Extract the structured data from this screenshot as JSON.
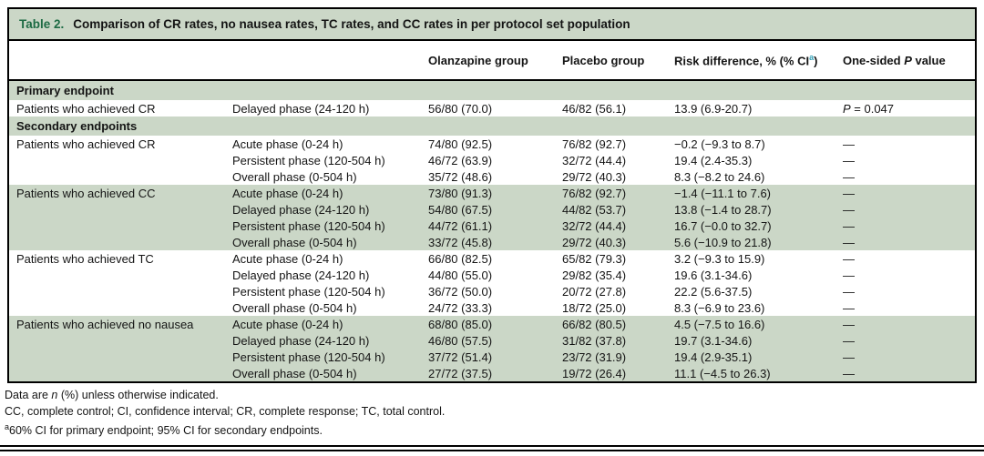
{
  "colors": {
    "band_green": "#cbd7c7",
    "title_green": "#1d6b44",
    "superscript_teal": "#2f9eb5"
  },
  "title": {
    "label": "Table 2.",
    "text": "Comparison of CR rates, no nausea rates, TC rates, and CC rates in per protocol set population"
  },
  "table": {
    "headers": {
      "endpoint": "",
      "phase": "",
      "olanzapine": "Olanzapine group",
      "placebo": "Placebo group",
      "risk_pre": "Risk difference, % (% CI",
      "risk_sup": "a",
      "risk_post": ")",
      "p_pre": "One-sided ",
      "p_italic": "P",
      "p_post": " value"
    },
    "rows": [
      {
        "type": "section",
        "label": "Primary endpoint"
      },
      {
        "type": "data",
        "shade": false,
        "endpoint": "Patients who achieved CR",
        "phase": "Delayed phase (24-120 h)",
        "olanzapine": "56/80 (70.0)",
        "placebo": "46/82 (56.1)",
        "risk": "13.9 (6.9-20.7)",
        "p": "P = 0.047"
      },
      {
        "type": "section",
        "label": "Secondary endpoints"
      },
      {
        "type": "data",
        "shade": false,
        "endpoint": "Patients who achieved CR",
        "phase": "Acute phase (0-24 h)",
        "olanzapine": "74/80 (92.5)",
        "placebo": "76/82 (92.7)",
        "risk": "−0.2 (−9.3 to 8.7)",
        "p": "—"
      },
      {
        "type": "data",
        "shade": false,
        "endpoint": "",
        "phase": "Persistent phase (120-504 h)",
        "olanzapine": "46/72 (63.9)",
        "placebo": "32/72 (44.4)",
        "risk": "19.4 (2.4-35.3)",
        "p": "—"
      },
      {
        "type": "data",
        "shade": false,
        "endpoint": "",
        "phase": "Overall phase (0-504 h)",
        "olanzapine": "35/72 (48.6)",
        "placebo": "29/72 (40.3)",
        "risk": "8.3 (−8.2 to 24.6)",
        "p": "—"
      },
      {
        "type": "data",
        "shade": true,
        "endpoint": "Patients who achieved CC",
        "phase": "Acute phase (0-24 h)",
        "olanzapine": "73/80 (91.3)",
        "placebo": "76/82 (92.7)",
        "risk": "−1.4 (−11.1 to 7.6)",
        "p": "—"
      },
      {
        "type": "data",
        "shade": true,
        "endpoint": "",
        "phase": "Delayed phase (24-120 h)",
        "olanzapine": "54/80 (67.5)",
        "placebo": "44/82 (53.7)",
        "risk": "13.8 (−1.4 to 28.7)",
        "p": "—"
      },
      {
        "type": "data",
        "shade": true,
        "endpoint": "",
        "phase": "Persistent phase (120-504 h)",
        "olanzapine": "44/72 (61.1)",
        "placebo": "32/72 (44.4)",
        "risk": "16.7 (−0.0 to 32.7)",
        "p": "—"
      },
      {
        "type": "data",
        "shade": true,
        "endpoint": "",
        "phase": "Overall phase (0-504 h)",
        "olanzapine": "33/72 (45.8)",
        "placebo": "29/72 (40.3)",
        "risk": "5.6 (−10.9 to 21.8)",
        "p": "—"
      },
      {
        "type": "data",
        "shade": false,
        "endpoint": "Patients who achieved TC",
        "phase": "Acute phase (0-24 h)",
        "olanzapine": "66/80 (82.5)",
        "placebo": "65/82 (79.3)",
        "risk": "3.2 (−9.3 to 15.9)",
        "p": "—"
      },
      {
        "type": "data",
        "shade": false,
        "endpoint": "",
        "phase": "Delayed phase (24-120 h)",
        "olanzapine": "44/80 (55.0)",
        "placebo": "29/82 (35.4)",
        "risk": "19.6 (3.1-34.6)",
        "p": "—"
      },
      {
        "type": "data",
        "shade": false,
        "endpoint": "",
        "phase": "Persistent phase (120-504 h)",
        "olanzapine": "36/72 (50.0)",
        "placebo": "20/72 (27.8)",
        "risk": "22.2 (5.6-37.5)",
        "p": "—"
      },
      {
        "type": "data",
        "shade": false,
        "endpoint": "",
        "phase": "Overall phase (0-504 h)",
        "olanzapine": "24/72 (33.3)",
        "placebo": "18/72 (25.0)",
        "risk": "8.3 (−6.9 to 23.6)",
        "p": "—"
      },
      {
        "type": "data",
        "shade": true,
        "endpoint": "Patients who achieved no nausea",
        "phase": "Acute phase (0-24 h)",
        "olanzapine": "68/80 (85.0)",
        "placebo": "66/82 (80.5)",
        "risk": "4.5 (−7.5 to 16.6)",
        "p": "—"
      },
      {
        "type": "data",
        "shade": true,
        "endpoint": "",
        "phase": "Delayed phase (24-120 h)",
        "olanzapine": "46/80 (57.5)",
        "placebo": "31/82 (37.8)",
        "risk": "19.7 (3.1-34.6)",
        "p": "—"
      },
      {
        "type": "data",
        "shade": true,
        "endpoint": "",
        "phase": "Persistent phase (120-504 h)",
        "olanzapine": "37/72 (51.4)",
        "placebo": "23/72 (31.9)",
        "risk": "19.4 (2.9-35.1)",
        "p": "—"
      },
      {
        "type": "data",
        "shade": true,
        "endpoint": "",
        "phase": "Overall phase (0-504 h)",
        "olanzapine": "27/72 (37.5)",
        "placebo": "19/72 (26.4)",
        "risk": "11.1 (−4.5 to 26.3)",
        "p": "—"
      }
    ]
  },
  "footnotes": {
    "line1_pre": "Data are ",
    "line1_italic": "n",
    "line1_post": " (%) unless otherwise indicated.",
    "line2": "CC, complete control; CI, confidence interval; CR, complete response; TC, total control.",
    "line3_sup": "a",
    "line3_text": "60% CI for primary endpoint; 95% CI for secondary endpoints."
  }
}
